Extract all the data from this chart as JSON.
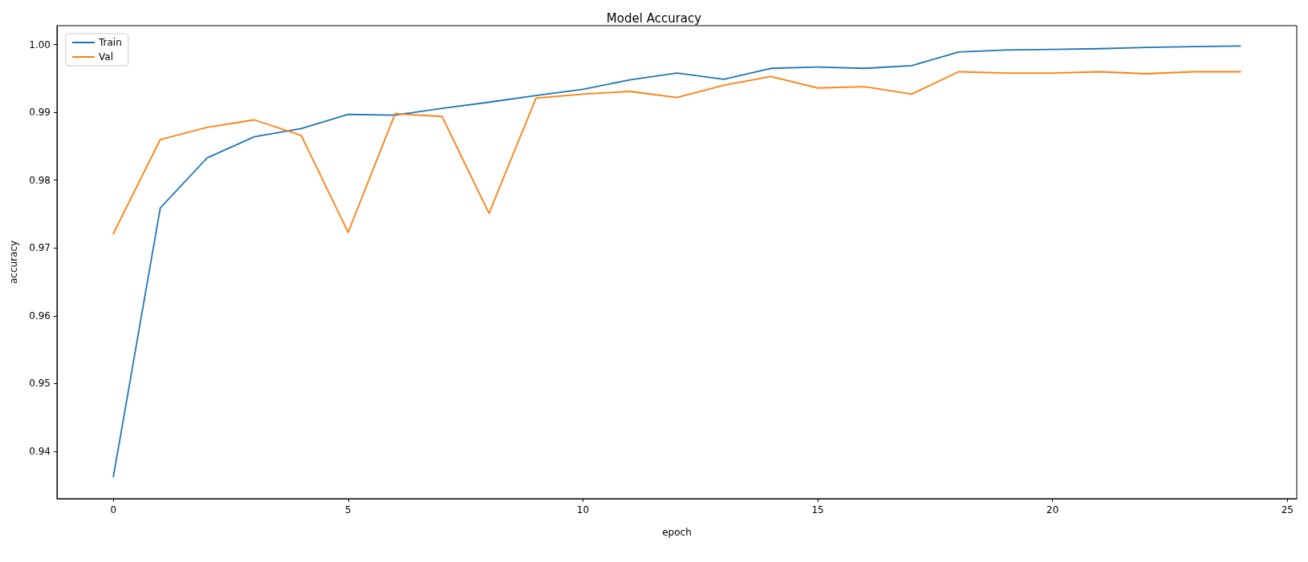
{
  "chart_data": {
    "type": "line",
    "title": "Model Accuracy",
    "xlabel": "epoch",
    "ylabel": "accuracy",
    "x": [
      0,
      1,
      2,
      3,
      4,
      5,
      6,
      7,
      8,
      9,
      10,
      11,
      12,
      13,
      14,
      15,
      16,
      17,
      18,
      19,
      20,
      21,
      22,
      23,
      24
    ],
    "series": [
      {
        "name": "Train",
        "color": "#1f77b4",
        "values": [
          0.9362,
          0.9759,
          0.9833,
          0.9864,
          0.9876,
          0.9897,
          0.9896,
          0.9906,
          0.9915,
          0.9925,
          0.9934,
          0.9948,
          0.9958,
          0.9949,
          0.9965,
          0.9967,
          0.9965,
          0.9969,
          0.9989,
          0.9992,
          0.9993,
          0.9994,
          0.9996,
          0.9997,
          0.9998
        ]
      },
      {
        "name": "Val",
        "color": "#ff7f0e",
        "values": [
          0.9721,
          0.986,
          0.9878,
          0.9889,
          0.9866,
          0.9723,
          0.9898,
          0.9894,
          0.9751,
          0.9921,
          0.9927,
          0.9931,
          0.9922,
          0.994,
          0.9953,
          0.9936,
          0.9938,
          0.9927,
          0.996,
          0.9958,
          0.9958,
          0.996,
          0.9957,
          0.996,
          0.996
        ]
      }
    ],
    "xlim": [
      -1.2,
      25.2
    ],
    "xticks": [
      0,
      5,
      10,
      15,
      20,
      25
    ],
    "ylim": [
      0.933,
      1.0028
    ],
    "yticks": [
      {
        "value": 0.94,
        "label": "0.94"
      },
      {
        "value": 0.95,
        "label": "0.95"
      },
      {
        "value": 0.96,
        "label": "0.96"
      },
      {
        "value": 0.97,
        "label": "0.97"
      },
      {
        "value": 0.98,
        "label": "0.98"
      },
      {
        "value": 0.99,
        "label": "0.99"
      },
      {
        "value": 1,
        "label": "1.00"
      }
    ],
    "grid": false,
    "legend": "top left",
    "marker": "none",
    "line_style": "solid"
  }
}
